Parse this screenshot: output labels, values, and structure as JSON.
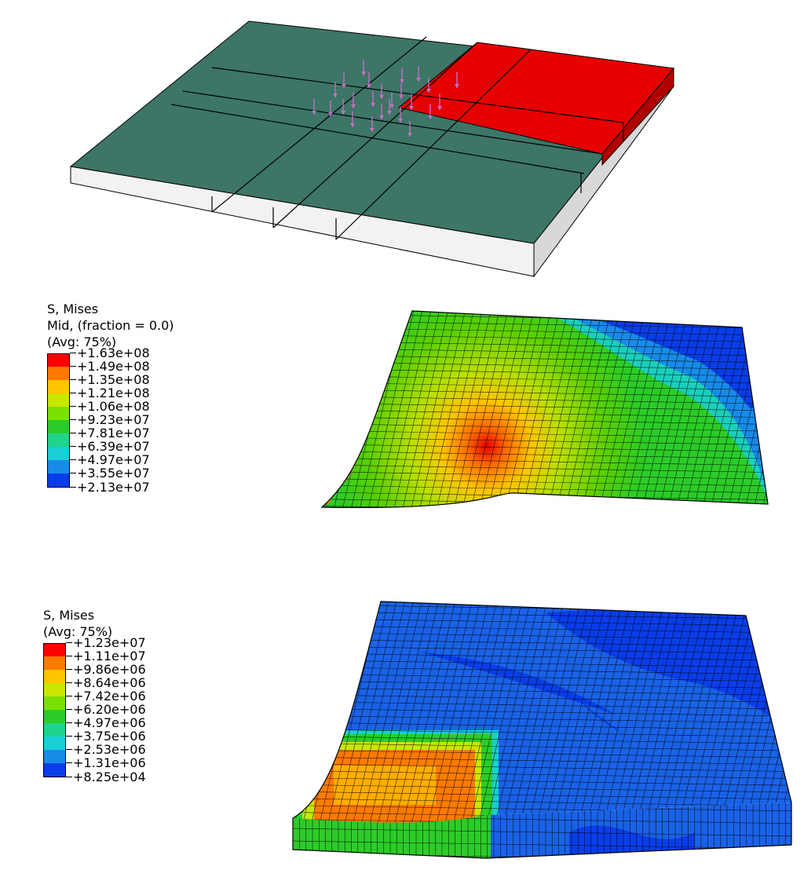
{
  "legend1": {
    "title_lines": [
      "S, Mises",
      "Mid, (fraction = 0.0)",
      "(Avg: 75%)"
    ],
    "values": [
      "+1.63e+08",
      "+1.49e+08",
      "+1.35e+08",
      "+1.21e+08",
      "+1.06e+08",
      "+9.23e+07",
      "+7.81e+07",
      "+6.39e+07",
      "+4.97e+07",
      "+3.55e+07",
      "+2.13e+07"
    ],
    "colors": [
      "#ff0000",
      "#ff7a00",
      "#ffc400",
      "#c8e600",
      "#7ae000",
      "#2ccc28",
      "#1fd48c",
      "#18cfd6",
      "#178be8",
      "#0a3de8"
    ]
  },
  "legend2": {
    "title_lines": [
      "S, Mises",
      "(Avg: 75%)"
    ],
    "values": [
      "+1.23e+07",
      "+1.11e+07",
      "+9.86e+06",
      "+8.64e+06",
      "+7.42e+06",
      "+6.20e+06",
      "+4.97e+06",
      "+3.75e+06",
      "+2.53e+06",
      "+1.31e+06",
      "+8.25e+04"
    ],
    "colors": [
      "#ff0000",
      "#ff7a00",
      "#ffc400",
      "#c8e600",
      "#7ae000",
      "#2ccc28",
      "#1fd48c",
      "#18cfd6",
      "#178be8",
      "#0a3de8"
    ]
  },
  "colors": {
    "plate_green": "#3d7566",
    "loaded_red": "#e60000",
    "load_arrow": "#c070c0"
  }
}
